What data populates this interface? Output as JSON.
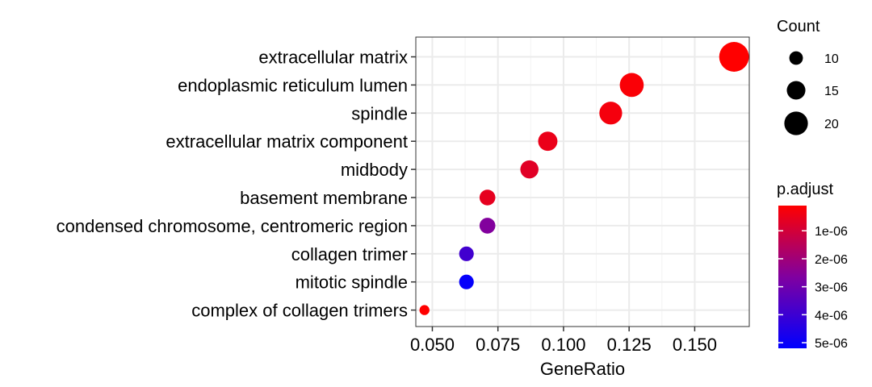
{
  "chart_data": {
    "type": "scatter",
    "xlabel": "GeneRatio",
    "ylabel": "",
    "xlim": [
      0.0437,
      0.1708
    ],
    "x_ticks": [
      0.05,
      0.075,
      0.1,
      0.125,
      0.15
    ],
    "x_tick_labels": [
      "0.050",
      "0.075",
      "0.100",
      "0.125",
      "0.150"
    ],
    "grid": true,
    "categories": [
      "extracellular matrix",
      "endoplasmic reticulum lumen",
      "spindle",
      "extracellular matrix component",
      "midbody",
      "basement membrane",
      "condensed chromosome, centromeric region",
      "collagen trimer",
      "mitotic spindle",
      "complex of collagen trimers"
    ],
    "points": [
      {
        "term": "extracellular matrix",
        "gene_ratio": 0.165,
        "count": 22,
        "p_adjust": 1e-07
      },
      {
        "term": "endoplasmic reticulum lumen",
        "gene_ratio": 0.126,
        "count": 17,
        "p_adjust": 2e-07
      },
      {
        "term": "spindle",
        "gene_ratio": 0.118,
        "count": 16,
        "p_adjust": 3e-07
      },
      {
        "term": "extracellular matrix component",
        "gene_ratio": 0.094,
        "count": 13,
        "p_adjust": 5e-07
      },
      {
        "term": "midbody",
        "gene_ratio": 0.087,
        "count": 12,
        "p_adjust": 7e-07
      },
      {
        "term": "basement membrane",
        "gene_ratio": 0.071,
        "count": 10,
        "p_adjust": 6e-07
      },
      {
        "term": "condensed chromosome, centromeric region",
        "gene_ratio": 0.071,
        "count": 10,
        "p_adjust": 2.6e-06
      },
      {
        "term": "collagen trimer",
        "gene_ratio": 0.063,
        "count": 9,
        "p_adjust": 3.9e-06
      },
      {
        "term": "mitotic spindle",
        "gene_ratio": 0.063,
        "count": 9,
        "p_adjust": 5.1e-06
      },
      {
        "term": "complex of collagen trimers",
        "gene_ratio": 0.047,
        "count": 5,
        "p_adjust": 1e-07
      }
    ],
    "legend": {
      "placement": "right",
      "size": {
        "title": "Count",
        "values": [
          10,
          15,
          20
        ],
        "labels": [
          "10",
          "15",
          "20"
        ]
      },
      "color": {
        "title": "p.adjust",
        "range": [
          1e-07,
          5.2e-06
        ],
        "values": [
          1e-06,
          2e-06,
          3e-06,
          4e-06,
          5e-06
        ],
        "labels": [
          "1e-06",
          "2e-06",
          "3e-06",
          "4e-06",
          "5e-06"
        ],
        "low_color": "#ff0000",
        "high_color": "#0000ff",
        "mid_color": "#8000a0"
      }
    },
    "colors": {
      "panel_border": "#333333",
      "grid_major": "#ebebeb",
      "grid_minor": "#f5f5f5",
      "tick_mark": "#333333"
    }
  }
}
